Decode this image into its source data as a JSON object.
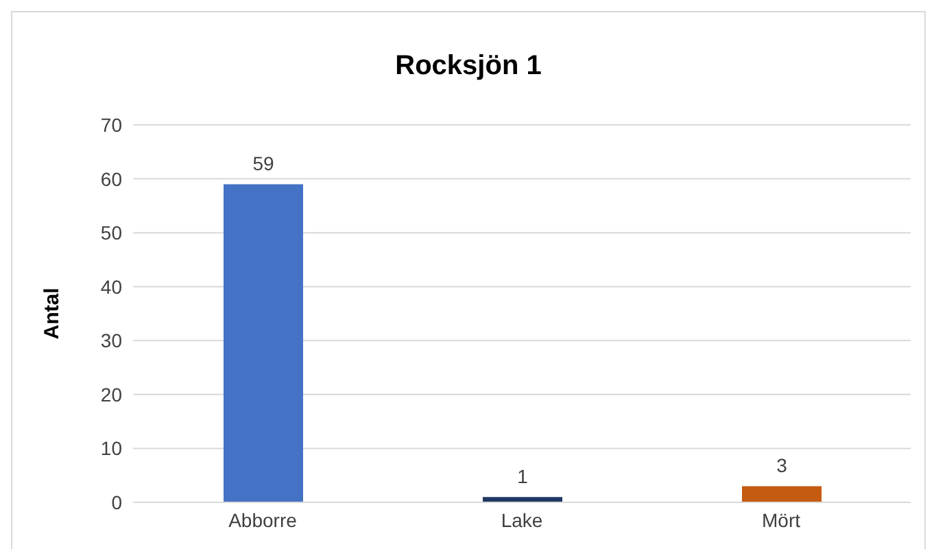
{
  "chart_data": {
    "type": "bar",
    "title": "Rocksjön 1",
    "ylabel": "Antal",
    "categories": [
      "Abborre",
      "Lake",
      "Mört"
    ],
    "values": [
      59,
      1,
      3
    ],
    "colors": [
      "#4472c4",
      "#203864",
      "#c55a11"
    ],
    "ylim": [
      0,
      70
    ],
    "yticks": [
      0,
      10,
      20,
      30,
      40,
      50,
      60,
      70
    ],
    "grid": "y",
    "data_labels": true
  }
}
